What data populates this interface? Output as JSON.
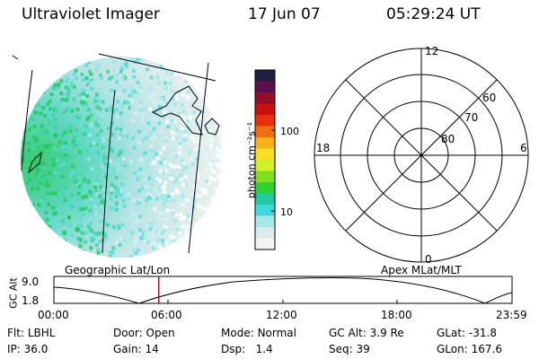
{
  "header": {
    "instrument": "Ultraviolet Imager",
    "date": "17 Jun 07",
    "time": "05:29:24 UT"
  },
  "colorbar": {
    "unit_label": "photon cm⁻²s⁻¹",
    "ticks": [
      "100",
      "10"
    ],
    "colors": [
      "#202040",
      "#5a1050",
      "#901028",
      "#c81010",
      "#e83010",
      "#f07010",
      "#f8b018",
      "#f8e028",
      "#d0f028",
      "#80e020",
      "#30d030",
      "#20c8a0",
      "#40d8e0",
      "#a8e8e8",
      "#dceaea",
      "#f4f4f4"
    ]
  },
  "polar_plot": {
    "mlt_labels": {
      "top": "12",
      "left": "18",
      "right": "6",
      "bottom": "0"
    },
    "lat_labels": [
      "60",
      "70",
      "80"
    ]
  },
  "timeline": {
    "left_title": "Geographic Lat/Lon",
    "right_title": "Apex MLat/MLT",
    "ylabel": "GC Alt",
    "y_max": "9.0",
    "y_min": "1.8",
    "ticks": [
      "00:00",
      "06:00",
      "12:00",
      "18:00",
      "23:59"
    ],
    "current_time_hours": 5.49,
    "marker_color": "#cc0000"
  },
  "status": {
    "row1": [
      {
        "key": "Flt:",
        "value": "LBHL"
      },
      {
        "key": "Door:",
        "value": "Open"
      },
      {
        "key": "Mode:",
        "value": "Normal"
      },
      {
        "key": "GC Alt:",
        "value": "3.9 Re"
      },
      {
        "key": "GLat:",
        "value": "-31.8"
      }
    ],
    "row2": [
      {
        "key": "IP:",
        "value": "36.0"
      },
      {
        "key": "Gain:",
        "value": "14"
      },
      {
        "key": "Dsp:",
        "value": "1.4"
      },
      {
        "key": "Seq:",
        "value": "39"
      },
      {
        "key": "GLon:",
        "value": "167.6"
      }
    ]
  }
}
